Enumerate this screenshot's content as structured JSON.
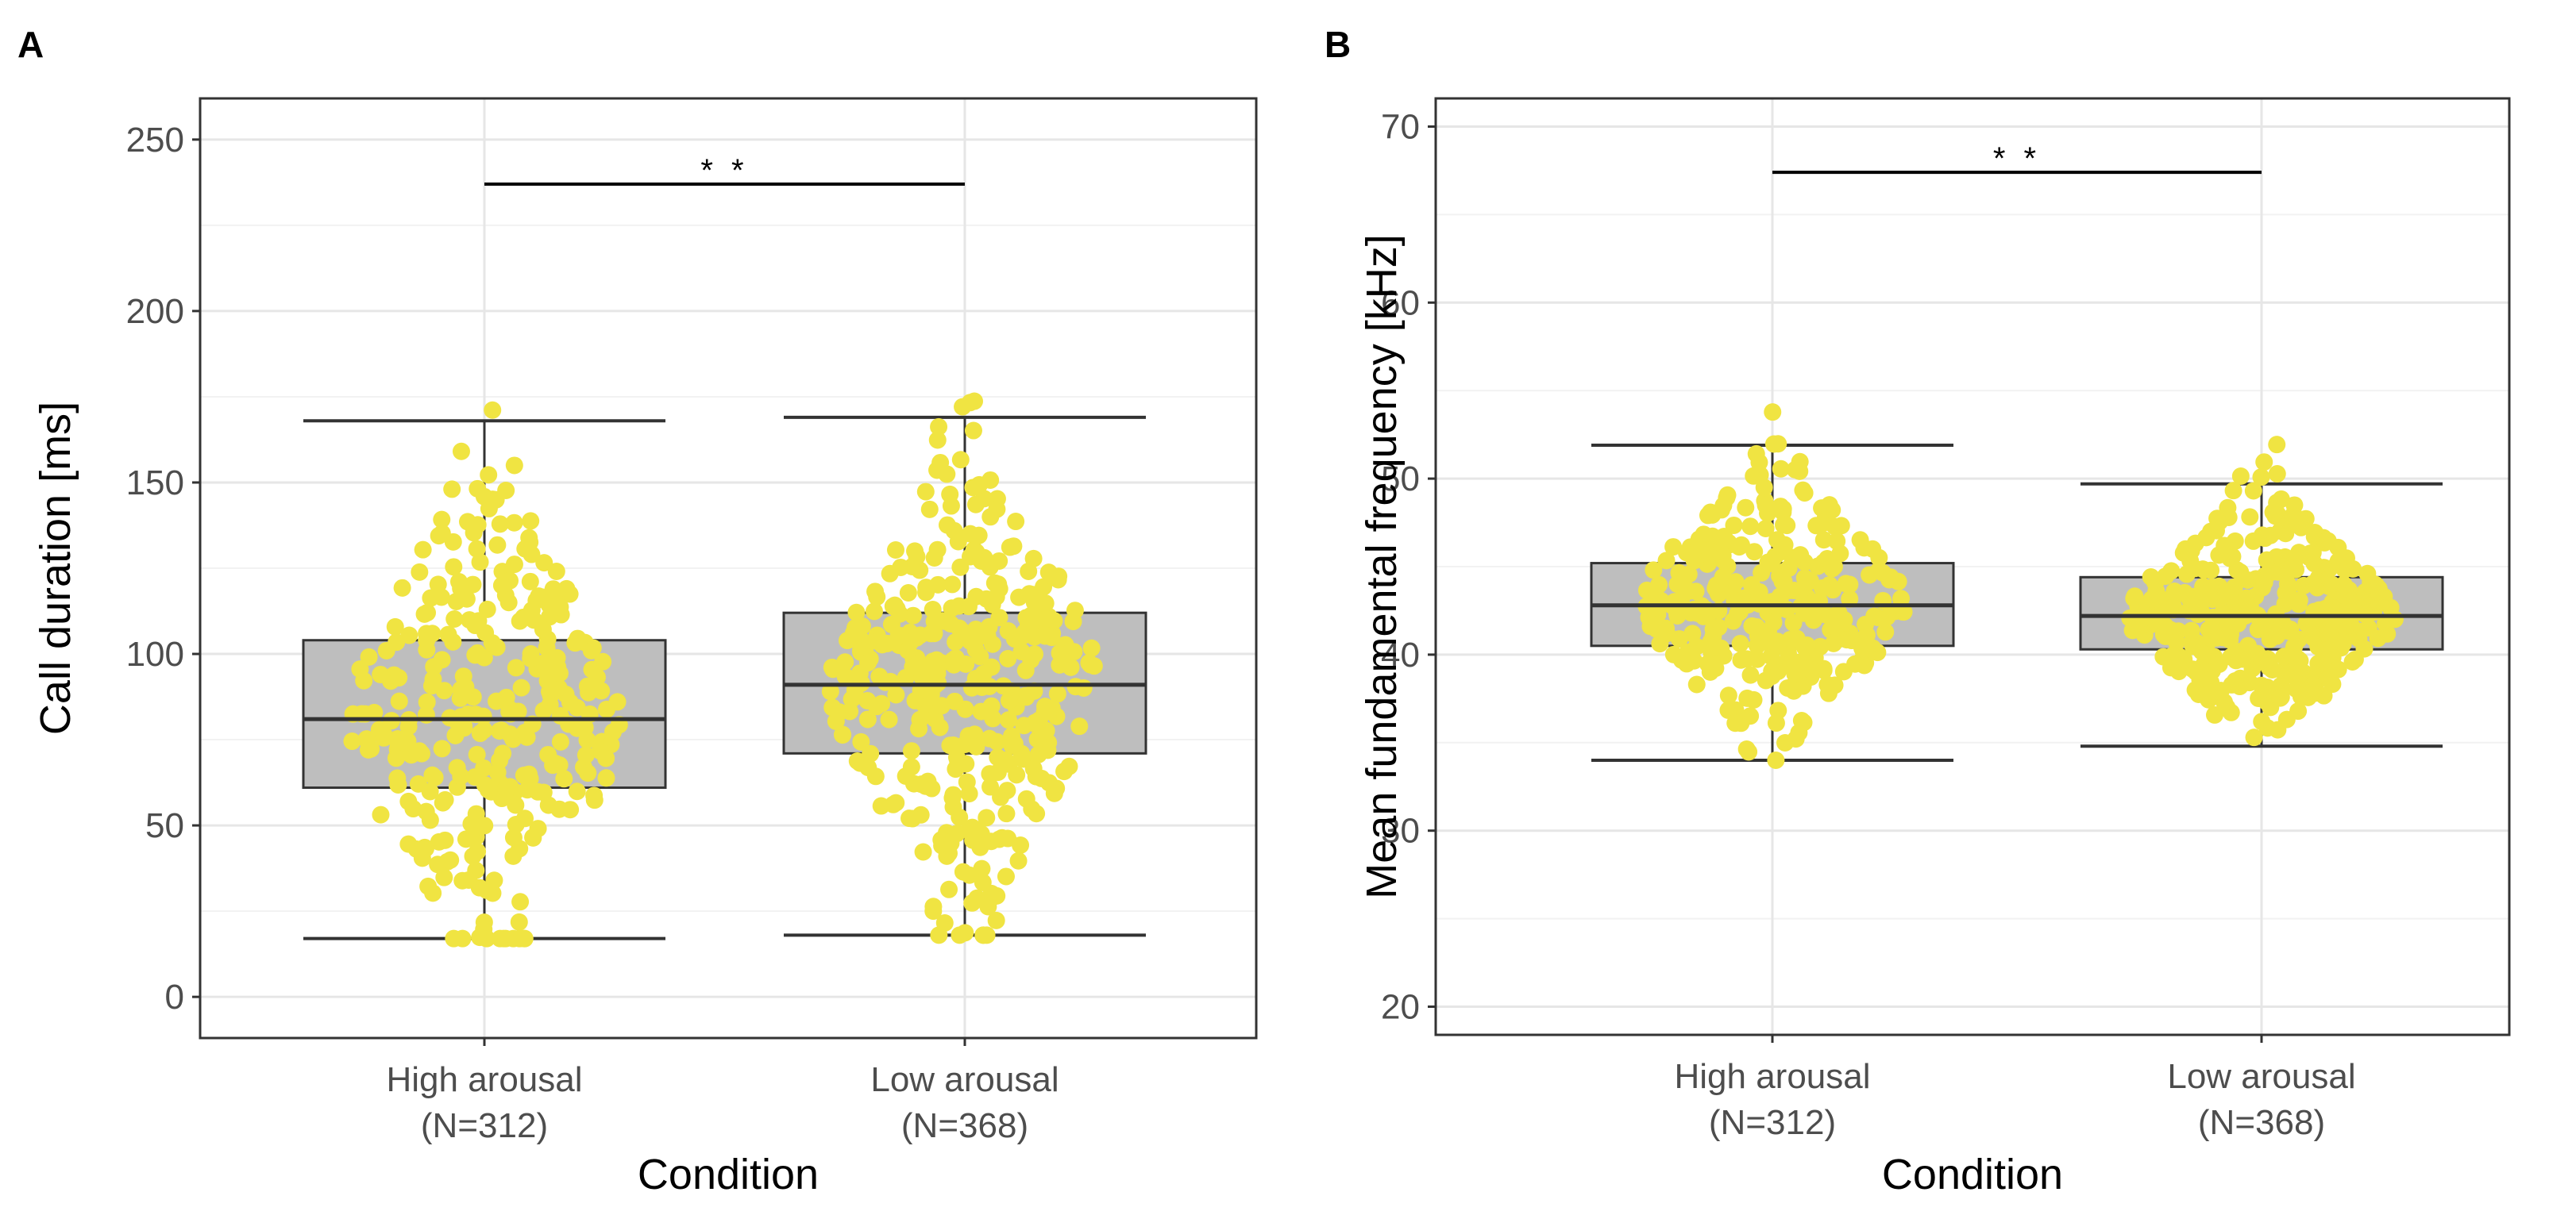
{
  "chart_data": [
    {
      "panel": "A",
      "type": "box",
      "xlabel": "Condition",
      "ylabel": "Call duration [ms]",
      "ylim": [
        -12,
        262
      ],
      "yticks": [
        0,
        50,
        100,
        150,
        200,
        250
      ],
      "grid": true,
      "categories": [
        {
          "label_line1": "High arousal",
          "label_line2": "(N=312)",
          "n": 312
        },
        {
          "label_line1": "Low arousal",
          "label_line2": "(N=368)",
          "n": 368
        }
      ],
      "boxes": [
        {
          "whisker_low": 17,
          "q1": 61,
          "median": 81,
          "q3": 104,
          "whisker_high": 168
        },
        {
          "whisker_low": 18,
          "q1": 71,
          "median": 91,
          "q3": 112,
          "whisker_high": 169
        }
      ],
      "significance": {
        "label": "**",
        "y": 237
      },
      "points_color": "#f0e442",
      "box_fill": "#bebebe"
    },
    {
      "panel": "B",
      "type": "box",
      "xlabel": "Condition",
      "ylabel": "Mean fundamental frequency [kHz]",
      "ylim": [
        18.4,
        71.6
      ],
      "yticks": [
        20,
        30,
        40,
        50,
        60,
        70
      ],
      "grid": true,
      "categories": [
        {
          "label_line1": "High arousal",
          "label_line2": "(N=312)",
          "n": 312
        },
        {
          "label_line1": "Low arousal",
          "label_line2": "(N=368)",
          "n": 368
        }
      ],
      "boxes": [
        {
          "whisker_low": 34,
          "q1": 40.5,
          "median": 42.8,
          "q3": 45.2,
          "whisker_high": 51.9
        },
        {
          "whisker_low": 34.8,
          "q1": 40.3,
          "median": 42.2,
          "q3": 44.4,
          "whisker_high": 49.7
        }
      ],
      "significance": {
        "label": "**",
        "y": 67.4
      },
      "points_color": "#f0e442",
      "box_fill": "#bebebe"
    }
  ]
}
